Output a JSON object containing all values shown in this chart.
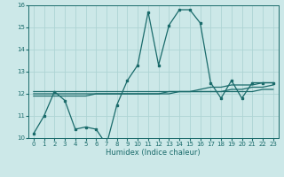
{
  "xlabel": "Humidex (Indice chaleur)",
  "bg_color": "#cce8e8",
  "line_color": "#1a6b6b",
  "grid_color": "#aed4d4",
  "xlim": [
    -0.5,
    23.5
  ],
  "ylim": [
    10,
    16
  ],
  "xticks": [
    0,
    1,
    2,
    3,
    4,
    5,
    6,
    7,
    8,
    9,
    10,
    11,
    12,
    13,
    14,
    15,
    16,
    17,
    18,
    19,
    20,
    21,
    22,
    23
  ],
  "yticks": [
    10,
    11,
    12,
    13,
    14,
    15,
    16
  ],
  "series": {
    "main": [
      10.2,
      11.0,
      12.1,
      11.7,
      10.4,
      10.5,
      10.4,
      9.7,
      11.5,
      12.6,
      13.3,
      15.7,
      13.3,
      15.1,
      15.8,
      15.8,
      15.2,
      12.5,
      11.8,
      12.6,
      11.8,
      12.5,
      12.5,
      12.5
    ],
    "avg_line": [
      12.1,
      12.1,
      12.1,
      12.1,
      12.1,
      12.1,
      12.1,
      12.1,
      12.1,
      12.1,
      12.1,
      12.1,
      12.1,
      12.1,
      12.1,
      12.1,
      12.2,
      12.3,
      12.3,
      12.4,
      12.4,
      12.4,
      12.5,
      12.5
    ],
    "avg_line2": [
      11.9,
      11.9,
      11.9,
      11.9,
      11.9,
      11.9,
      12.0,
      12.0,
      12.0,
      12.0,
      12.0,
      12.0,
      12.0,
      12.0,
      12.1,
      12.1,
      12.1,
      12.1,
      12.1,
      12.1,
      12.1,
      12.1,
      12.2,
      12.2
    ],
    "avg_line3": [
      12.0,
      12.0,
      12.0,
      12.0,
      12.0,
      12.0,
      12.0,
      12.0,
      12.0,
      12.0,
      12.0,
      12.0,
      12.0,
      12.1,
      12.1,
      12.1,
      12.1,
      12.1,
      12.1,
      12.2,
      12.2,
      12.3,
      12.3,
      12.4
    ]
  },
  "tick_fontsize": 5,
  "xlabel_fontsize": 6,
  "marker_size": 2.0,
  "linewidth": 0.9
}
